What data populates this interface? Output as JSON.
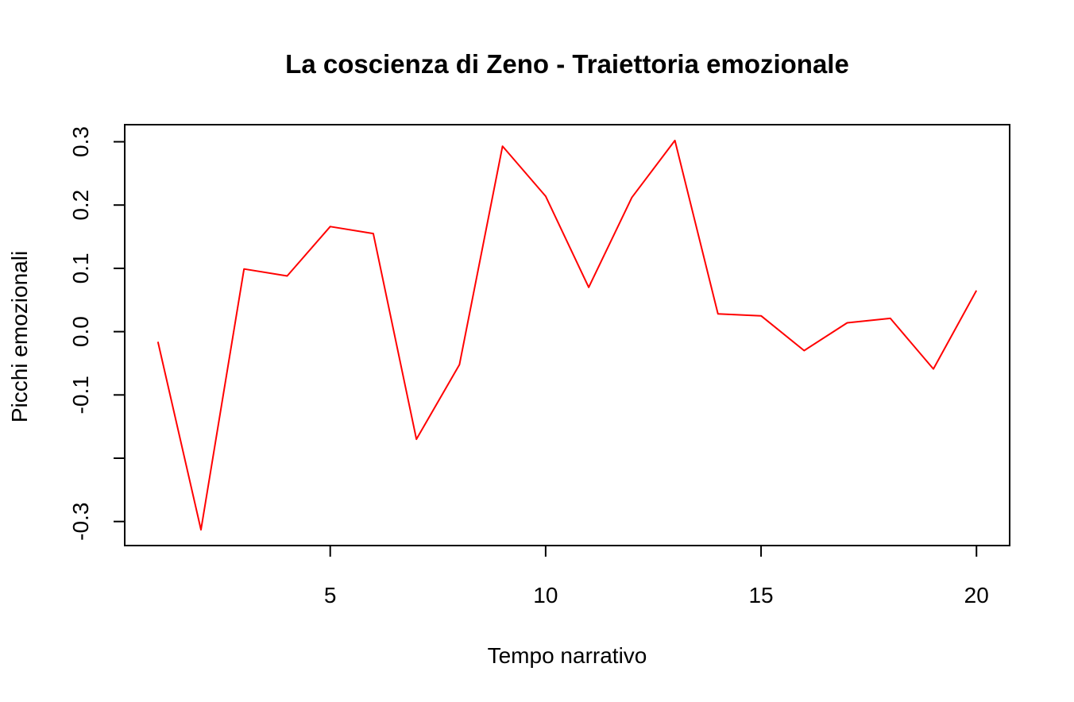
{
  "chart_data": {
    "type": "line",
    "title": "La coscienza di Zeno - Traiettoria emozionale",
    "xlabel": "Tempo narrativo",
    "ylabel": "Picchi emozionali",
    "xlim": [
      0.23,
      20.77
    ],
    "ylim": [
      -0.338,
      0.327
    ],
    "x_ticks": [
      5,
      10,
      15,
      20
    ],
    "x_tick_labels": [
      "5",
      "10",
      "15",
      "20"
    ],
    "y_ticks": [
      -0.3,
      -0.2,
      -0.1,
      0.0,
      0.1,
      0.2,
      0.3
    ],
    "y_tick_labels": [
      "-0.3",
      "",
      "-0.1",
      "0.0",
      "0.1",
      "0.2",
      "0.3"
    ],
    "grid": false,
    "legend": "none",
    "line_color": "#ff0000",
    "x": [
      1,
      2,
      3,
      4,
      5,
      6,
      7,
      8,
      9,
      10,
      11,
      12,
      13,
      14,
      15,
      16,
      17,
      18,
      19,
      20
    ],
    "series": [
      {
        "values": [
          -0.016,
          -0.313,
          0.099,
          0.088,
          0.166,
          0.155,
          -0.17,
          -0.052,
          0.293,
          0.214,
          0.07,
          0.212,
          0.302,
          0.028,
          0.025,
          -0.03,
          0.014,
          0.021,
          -0.059,
          0.065
        ]
      }
    ]
  }
}
